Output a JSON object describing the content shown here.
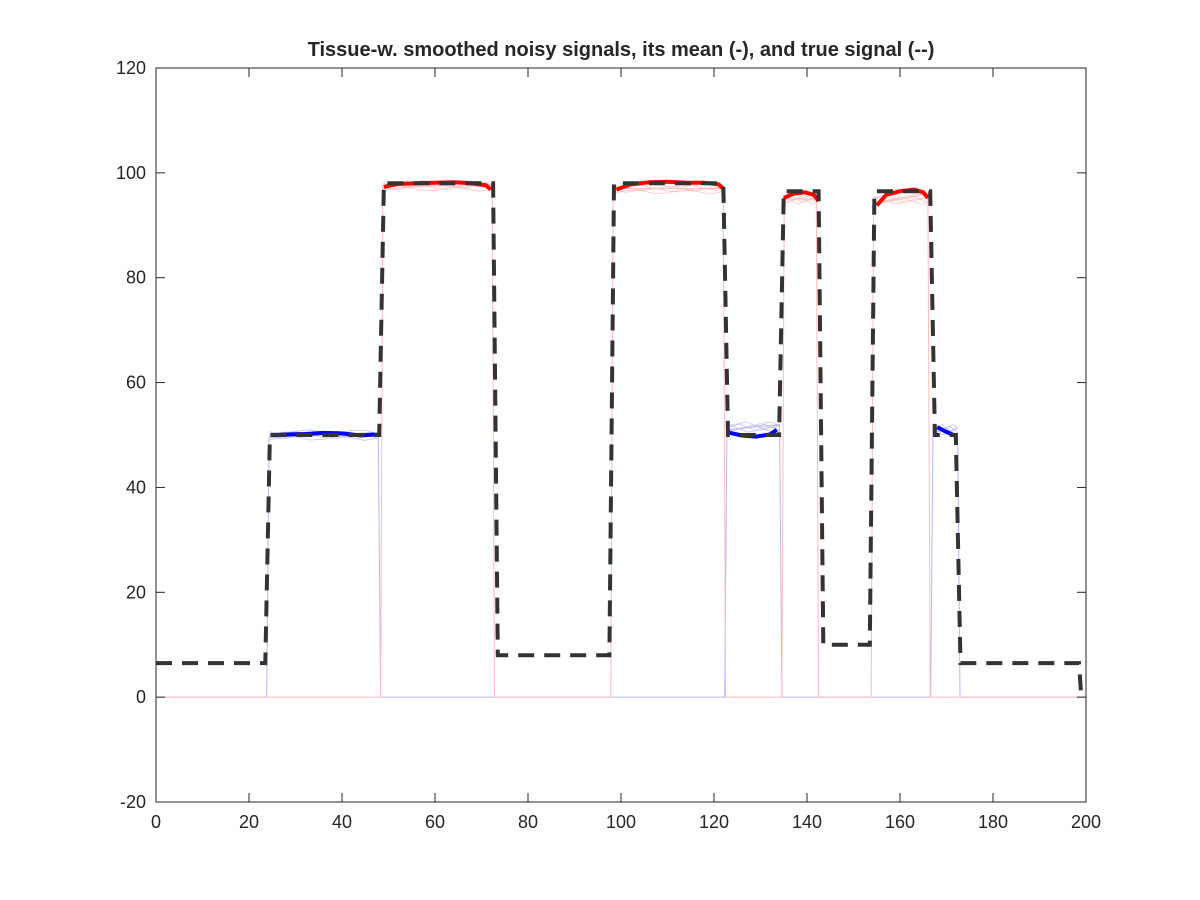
{
  "chart_data": {
    "type": "line",
    "title": "Tissue-w. smoothed noisy signals, its mean (-), and true signal (--)",
    "xlabel": "",
    "ylabel": "",
    "xlim": [
      0,
      200
    ],
    "ylim": [
      -20,
      120
    ],
    "xticks": [
      0,
      20,
      40,
      60,
      80,
      100,
      120,
      140,
      160,
      180,
      200
    ],
    "yticks": [
      -20,
      0,
      20,
      40,
      60,
      80,
      100,
      120
    ],
    "grid": false,
    "legend": "none",
    "colors": {
      "axes": "#262626",
      "true_signal": "#333333",
      "mean_tissue_50": "#0000ff",
      "mean_tissue_98": "#ff0000",
      "noisy_tissue_50": "#b8b8f0",
      "noisy_tissue_98": "#ffbcbc"
    },
    "series": [
      {
        "style": "dashed",
        "role": "true_signal",
        "x": [
          0,
          23.5,
          24.5,
          48,
          49,
          72.5,
          73.5,
          97.5,
          98.5,
          122,
          123,
          134,
          135,
          142.5,
          143.5,
          153.5,
          154.5,
          166.5,
          167.5,
          172,
          173,
          198.5,
          199
        ],
        "y": [
          6.5,
          6.5,
          50,
          50,
          98,
          98,
          8,
          8,
          98,
          98,
          50,
          50,
          96.5,
          96.5,
          10,
          10,
          96.5,
          96.5,
          50,
          50,
          6.5,
          6.5,
          0
        ]
      },
      {
        "style": "solid",
        "role": "mean_tissue_50",
        "segments": [
          {
            "x": [
              25,
              28,
              32,
              36,
              40,
              44,
              47
            ],
            "y": [
              50,
              50.1,
              50.2,
              50.4,
              50.3,
              49.9,
              50.1
            ]
          },
          {
            "x": [
              123,
              126,
              129,
              132,
              133.5
            ],
            "y": [
              50.5,
              49.9,
              49.7,
              50.1,
              51
            ]
          },
          {
            "x": [
              168,
              169.5,
              171,
              172
            ],
            "y": [
              51.5,
              50.8,
              50.2,
              49.8
            ]
          }
        ]
      },
      {
        "style": "solid",
        "role": "mean_tissue_98",
        "segments": [
          {
            "x": [
              49,
              52,
              56,
              60,
              64,
              68,
              71,
              72
            ],
            "y": [
              97.3,
              97.9,
              98,
              98.1,
              98.2,
              98,
              97.6,
              96.8
            ]
          },
          {
            "x": [
              99,
              102,
              106,
              110,
              114,
              118,
              121,
              122
            ],
            "y": [
              96.8,
              97.8,
              98.2,
              98.3,
              98.1,
              98.1,
              97.8,
              97
            ]
          },
          {
            "x": [
              135,
              137,
              139.5,
              141.5,
              142.5
            ],
            "y": [
              95.2,
              96,
              96.3,
              95.8,
              94.6
            ]
          },
          {
            "x": [
              155,
              157,
              160,
              163,
              165,
              166
            ],
            "y": [
              93.8,
              95.8,
              96.5,
              96.8,
              96.3,
              95.2
            ]
          }
        ]
      },
      {
        "style": "thin",
        "role": "noisy_tissue_50",
        "x": [
          0,
          23.8,
          24.3,
          47.8,
          48.3,
          122.3,
          122.8,
          134.1,
          134.6,
          166.6,
          167.1,
          172.4,
          172.9,
          200
        ],
        "y": [
          0,
          0,
          49.5,
          50.5,
          0,
          0,
          51,
          52,
          0,
          0,
          52,
          50,
          0,
          0
        ]
      },
      {
        "style": "thin",
        "role": "noisy_tissue_98",
        "x": [
          0,
          48.3,
          48.8,
          72.3,
          72.8,
          97.8,
          98.3,
          122.0,
          122.5,
          134.6,
          135.1,
          142.0,
          142.5,
          153.8,
          154.3,
          166.0,
          166.5,
          200
        ],
        "y": [
          0,
          0,
          97.5,
          97.5,
          0,
          0,
          97,
          97,
          0,
          0,
          95,
          95,
          0,
          0,
          94,
          96,
          0,
          0
        ]
      }
    ]
  }
}
